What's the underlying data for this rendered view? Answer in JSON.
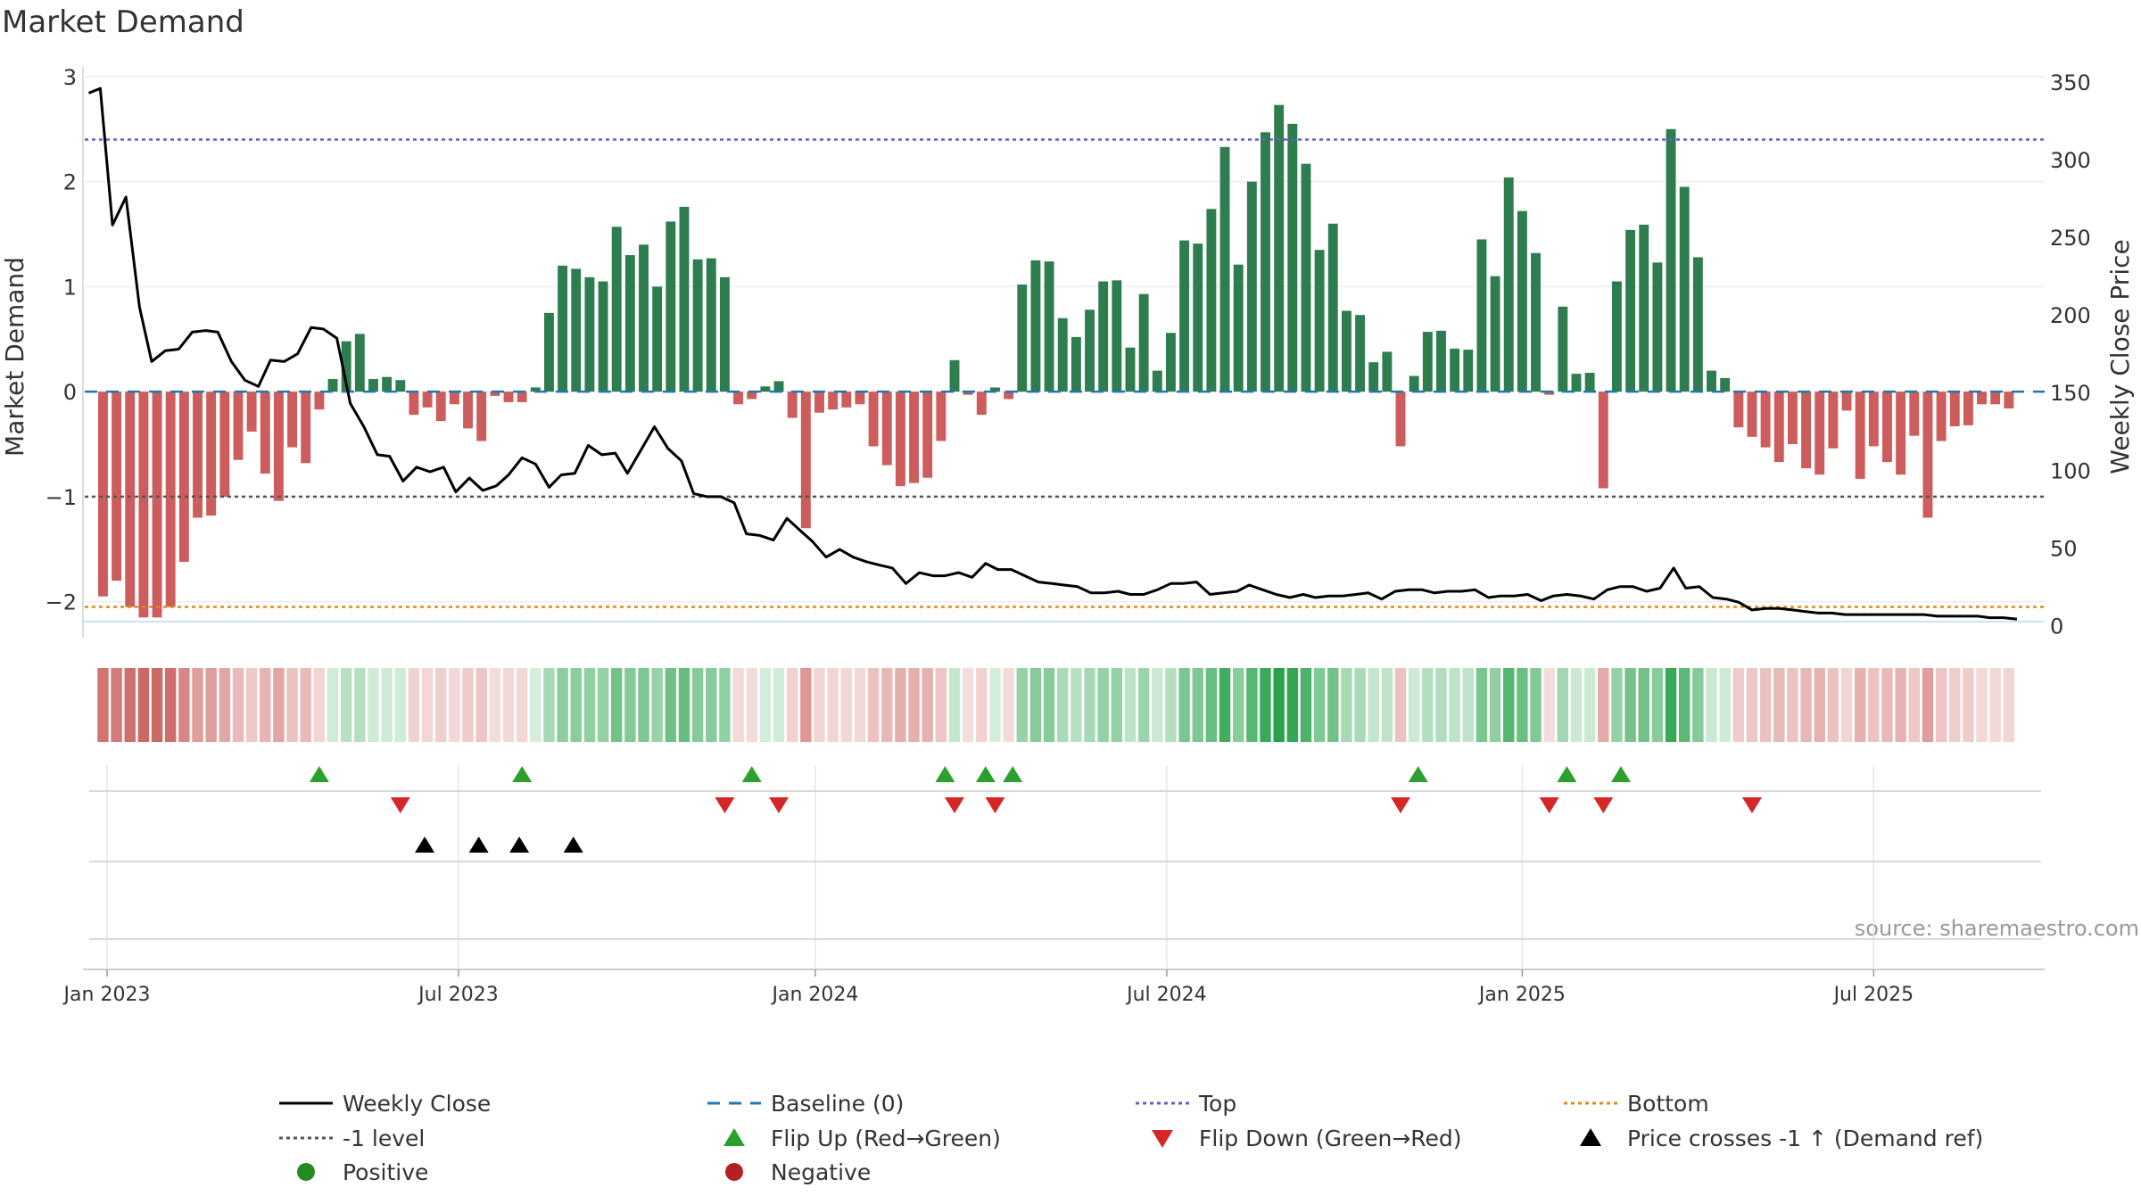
{
  "chart_data": {
    "type": "bar",
    "title": "Market Demand",
    "ylabel_left": "Market Demand",
    "ylabel_right": "Weekly Close Price",
    "ylim_left": [
      -2.3,
      3.05
    ],
    "ylim_right": [
      -5,
      357
    ],
    "yticks_left": [
      {
        "v": 3,
        "label": "3"
      },
      {
        "v": 2,
        "label": "2"
      },
      {
        "v": 1,
        "label": "1"
      },
      {
        "v": 0,
        "label": "0"
      },
      {
        "v": -1,
        "label": "−1"
      },
      {
        "v": -2,
        "label": "−2"
      }
    ],
    "yticks_right": [
      {
        "v": 350,
        "label": "350"
      },
      {
        "v": 300,
        "label": "300"
      },
      {
        "v": 250,
        "label": "250"
      },
      {
        "v": 200,
        "label": "200"
      },
      {
        "v": 150,
        "label": "150"
      },
      {
        "v": 100,
        "label": "100"
      },
      {
        "v": 50,
        "label": "50"
      },
      {
        "v": 0,
        "label": "0"
      }
    ],
    "x_start_week": -1.35,
    "x_end_week": 143.65,
    "xticks": [
      {
        "label": "Jan 2023",
        "week": 0.3
      },
      {
        "label": "Jul 2023",
        "week": 26.3
      },
      {
        "label": "Jan 2024",
        "week": 52.7
      },
      {
        "label": "Jul 2024",
        "week": 78.7
      },
      {
        "label": "Jan 2025",
        "week": 105.0
      },
      {
        "label": "Jul 2025",
        "week": 131.0
      }
    ],
    "reference_lines": {
      "top": 2.4,
      "minus_one": -1.0,
      "baseline": 0,
      "bottom": -2.05
    },
    "demand": [
      -1.95,
      -1.8,
      -2.05,
      -2.15,
      -2.15,
      -2.05,
      -1.62,
      -1.2,
      -1.18,
      -1.0,
      -0.65,
      -0.38,
      -0.78,
      -1.04,
      -0.53,
      -0.68,
      -0.17,
      0.12,
      0.48,
      0.55,
      0.12,
      0.14,
      0.11,
      -0.22,
      -0.15,
      -0.28,
      -0.12,
      -0.35,
      -0.47,
      -0.04,
      -0.1,
      -0.1,
      0.04,
      0.75,
      1.2,
      1.17,
      1.09,
      1.05,
      1.57,
      1.3,
      1.4,
      1.0,
      1.62,
      1.76,
      1.26,
      1.27,
      1.09,
      -0.12,
      -0.07,
      0.05,
      0.1,
      -0.25,
      -1.3,
      -0.2,
      -0.17,
      -0.15,
      -0.12,
      -0.52,
      -0.7,
      -0.9,
      -0.87,
      -0.82,
      -0.47,
      0.3,
      -0.03,
      -0.22,
      0.04,
      -0.07,
      1.02,
      1.25,
      1.24,
      0.7,
      0.52,
      0.78,
      1.05,
      1.06,
      0.42,
      0.93,
      0.2,
      0.56,
      1.44,
      1.41,
      1.74,
      2.33,
      1.21,
      2.0,
      2.47,
      2.73,
      2.55,
      2.17,
      1.35,
      1.6,
      0.77,
      0.73,
      0.28,
      0.38,
      -0.52,
      0.15,
      0.57,
      0.58,
      0.41,
      0.4,
      1.45,
      1.1,
      2.04,
      1.72,
      1.32,
      -0.03,
      0.81,
      0.17,
      0.18,
      -0.92,
      1.05,
      1.54,
      1.59,
      1.23,
      2.5,
      1.95,
      1.28,
      0.2,
      0.13,
      -0.34,
      -0.43,
      -0.53,
      -0.67,
      -0.5,
      -0.73,
      -0.79,
      -0.54,
      -0.18,
      -0.83,
      -0.52,
      -0.67,
      -0.79,
      -0.42,
      -1.2,
      -0.47,
      -0.33,
      -0.32,
      -0.12,
      -0.12,
      -0.16
    ],
    "close": [
      {
        "w": -1.05,
        "v": 343
      },
      {
        "w": -0.2,
        "v": 346
      },
      {
        "w": 0.7,
        "v": 258
      },
      {
        "w": 1.7,
        "v": 276
      },
      {
        "w": 2.7,
        "v": 205
      },
      {
        "w": 3.6,
        "v": 170
      },
      {
        "w": 4.6,
        "v": 177
      },
      {
        "w": 5.6,
        "v": 178
      },
      {
        "w": 6.6,
        "v": 189
      },
      {
        "w": 7.6,
        "v": 190
      },
      {
        "w": 8.5,
        "v": 189
      },
      {
        "w": 9.5,
        "v": 170
      },
      {
        "w": 10.5,
        "v": 158
      },
      {
        "w": 11.5,
        "v": 154
      },
      {
        "w": 12.4,
        "v": 171
      },
      {
        "w": 13.4,
        "v": 170
      },
      {
        "w": 14.4,
        "v": 175
      },
      {
        "w": 15.4,
        "v": 192
      },
      {
        "w": 16.3,
        "v": 191
      },
      {
        "w": 17.3,
        "v": 185
      },
      {
        "w": 18.3,
        "v": 143
      },
      {
        "w": 19.3,
        "v": 128
      },
      {
        "w": 20.3,
        "v": 110
      },
      {
        "w": 21.2,
        "v": 109
      },
      {
        "w": 22.2,
        "v": 93
      },
      {
        "w": 23.2,
        "v": 102
      },
      {
        "w": 24.2,
        "v": 99
      },
      {
        "w": 25.2,
        "v": 102
      },
      {
        "w": 26.1,
        "v": 86
      },
      {
        "w": 27.1,
        "v": 95
      },
      {
        "w": 28.1,
        "v": 87
      },
      {
        "w": 29.1,
        "v": 90
      },
      {
        "w": 30.0,
        "v": 97
      },
      {
        "w": 31.0,
        "v": 108
      },
      {
        "w": 32.0,
        "v": 104
      },
      {
        "w": 33.0,
        "v": 89
      },
      {
        "w": 33.9,
        "v": 97
      },
      {
        "w": 34.9,
        "v": 98
      },
      {
        "w": 35.9,
        "v": 116
      },
      {
        "w": 36.9,
        "v": 110
      },
      {
        "w": 37.9,
        "v": 111
      },
      {
        "w": 38.8,
        "v": 98
      },
      {
        "w": 39.8,
        "v": 113
      },
      {
        "w": 40.8,
        "v": 128
      },
      {
        "w": 41.8,
        "v": 114
      },
      {
        "w": 42.8,
        "v": 106
      },
      {
        "w": 43.7,
        "v": 85
      },
      {
        "w": 44.7,
        "v": 83
      },
      {
        "w": 45.7,
        "v": 83
      },
      {
        "w": 46.7,
        "v": 79
      },
      {
        "w": 47.6,
        "v": 59
      },
      {
        "w": 48.6,
        "v": 58
      },
      {
        "w": 49.6,
        "v": 55
      },
      {
        "w": 50.6,
        "v": 69
      },
      {
        "w": 51.6,
        "v": 61
      },
      {
        "w": 52.5,
        "v": 54
      },
      {
        "w": 53.5,
        "v": 44
      },
      {
        "w": 54.5,
        "v": 49
      },
      {
        "w": 55.5,
        "v": 44
      },
      {
        "w": 56.5,
        "v": 41
      },
      {
        "w": 57.4,
        "v": 39
      },
      {
        "w": 58.4,
        "v": 37
      },
      {
        "w": 59.4,
        "v": 27
      },
      {
        "w": 60.4,
        "v": 34
      },
      {
        "w": 61.4,
        "v": 32
      },
      {
        "w": 62.3,
        "v": 32
      },
      {
        "w": 63.3,
        "v": 34
      },
      {
        "w": 64.3,
        "v": 31
      },
      {
        "w": 65.3,
        "v": 40
      },
      {
        "w": 66.2,
        "v": 36
      },
      {
        "w": 67.2,
        "v": 36
      },
      {
        "w": 68.2,
        "v": 32
      },
      {
        "w": 69.2,
        "v": 28
      },
      {
        "w": 70.2,
        "v": 27
      },
      {
        "w": 71.1,
        "v": 26
      },
      {
        "w": 72.1,
        "v": 25
      },
      {
        "w": 73.1,
        "v": 21
      },
      {
        "w": 74.1,
        "v": 21
      },
      {
        "w": 75.1,
        "v": 22
      },
      {
        "w": 76.0,
        "v": 20
      },
      {
        "w": 77.0,
        "v": 20
      },
      {
        "w": 78.0,
        "v": 23
      },
      {
        "w": 79.0,
        "v": 27
      },
      {
        "w": 79.9,
        "v": 27
      },
      {
        "w": 80.9,
        "v": 28
      },
      {
        "w": 81.9,
        "v": 20
      },
      {
        "w": 82.9,
        "v": 21
      },
      {
        "w": 83.9,
        "v": 22
      },
      {
        "w": 84.8,
        "v": 26
      },
      {
        "w": 85.8,
        "v": 23
      },
      {
        "w": 86.8,
        "v": 20
      },
      {
        "w": 87.8,
        "v": 18
      },
      {
        "w": 88.8,
        "v": 20
      },
      {
        "w": 89.7,
        "v": 18
      },
      {
        "w": 90.7,
        "v": 19
      },
      {
        "w": 91.7,
        "v": 19
      },
      {
        "w": 92.7,
        "v": 20
      },
      {
        "w": 93.6,
        "v": 21
      },
      {
        "w": 94.6,
        "v": 17
      },
      {
        "w": 95.6,
        "v": 22
      },
      {
        "w": 96.6,
        "v": 23
      },
      {
        "w": 97.6,
        "v": 23
      },
      {
        "w": 98.5,
        "v": 21
      },
      {
        "w": 99.5,
        "v": 22
      },
      {
        "w": 100.5,
        "v": 22
      },
      {
        "w": 101.5,
        "v": 23
      },
      {
        "w": 102.5,
        "v": 18
      },
      {
        "w": 103.4,
        "v": 19
      },
      {
        "w": 104.4,
        "v": 19
      },
      {
        "w": 105.4,
        "v": 20
      },
      {
        "w": 106.4,
        "v": 16
      },
      {
        "w": 107.3,
        "v": 19
      },
      {
        "w": 108.3,
        "v": 20
      },
      {
        "w": 109.3,
        "v": 19
      },
      {
        "w": 110.3,
        "v": 17
      },
      {
        "w": 111.3,
        "v": 23
      },
      {
        "w": 112.2,
        "v": 25
      },
      {
        "w": 113.2,
        "v": 25
      },
      {
        "w": 114.2,
        "v": 22
      },
      {
        "w": 115.2,
        "v": 24
      },
      {
        "w": 116.2,
        "v": 37
      },
      {
        "w": 117.1,
        "v": 24
      },
      {
        "w": 118.1,
        "v": 25
      },
      {
        "w": 119.1,
        "v": 18
      },
      {
        "w": 120.1,
        "v": 17
      },
      {
        "w": 121.0,
        "v": 15
      },
      {
        "w": 122.0,
        "v": 10
      },
      {
        "w": 123.0,
        "v": 11
      },
      {
        "w": 124.0,
        "v": 11
      },
      {
        "w": 125.0,
        "v": 10
      },
      {
        "w": 125.9,
        "v": 9
      },
      {
        "w": 126.9,
        "v": 8
      },
      {
        "w": 127.9,
        "v": 8
      },
      {
        "w": 128.9,
        "v": 7
      },
      {
        "w": 129.9,
        "v": 7
      },
      {
        "w": 130.8,
        "v": 7
      },
      {
        "w": 131.8,
        "v": 7
      },
      {
        "w": 132.8,
        "v": 7
      },
      {
        "w": 133.8,
        "v": 7
      },
      {
        "w": 134.7,
        "v": 7
      },
      {
        "w": 135.7,
        "v": 6
      },
      {
        "w": 136.7,
        "v": 6
      },
      {
        "w": 137.7,
        "v": 6
      },
      {
        "w": 138.7,
        "v": 6
      },
      {
        "w": 139.6,
        "v": 5
      },
      {
        "w": 140.6,
        "v": 5
      },
      {
        "w": 141.6,
        "v": 4
      }
    ],
    "flip_up_weeks": [
      16.0,
      31.0,
      48.0,
      62.3,
      65.3,
      67.3,
      97.3,
      108.3,
      112.3
    ],
    "flip_down_weeks": [
      22.0,
      46.0,
      50.0,
      63.0,
      66.0,
      96.0,
      107.0,
      111.0,
      122.0
    ],
    "price_cross_weeks": [
      23.8,
      27.8,
      30.8,
      34.8
    ],
    "colors": {
      "positive_bar": "#2e7d4f",
      "negative_bar": "#cd5c5c",
      "close_line": "#000000",
      "baseline": "#1f77b4",
      "top": "#6a5acd",
      "minus_one": "#555555",
      "bottom": "#e08a1e",
      "flip_up": "#2ca02c",
      "flip_down": "#d62728",
      "cross": "#000000",
      "positive_dot": "#228b22",
      "negative_dot": "#b22222"
    }
  },
  "source_note": "source: sharemaestro.com",
  "legend": [
    {
      "label": "Weekly Close",
      "symbol": "solid-line",
      "color": "#000000"
    },
    {
      "label": "Baseline (0)",
      "symbol": "dashed-line",
      "color": "#1f77b4"
    },
    {
      "label": "Top",
      "symbol": "dotted-line",
      "color": "#6a5acd"
    },
    {
      "label": "Bottom",
      "symbol": "dotted-line",
      "color": "#e08a1e"
    },
    {
      "label": "-1 level",
      "symbol": "dotted-line",
      "color": "#555555"
    },
    {
      "label": "Flip Up (Red→Green)",
      "symbol": "triangle-up",
      "color": "#2ca02c"
    },
    {
      "label": "Flip Down (Green→Red)",
      "symbol": "triangle-down",
      "color": "#d62728"
    },
    {
      "label": "Price crosses -1 ↑ (Demand ref)",
      "symbol": "triangle-up",
      "color": "#000000"
    },
    {
      "label": "Positive",
      "symbol": "dot",
      "color": "#228b22"
    },
    {
      "label": "Negative",
      "symbol": "dot",
      "color": "#b22222"
    }
  ]
}
